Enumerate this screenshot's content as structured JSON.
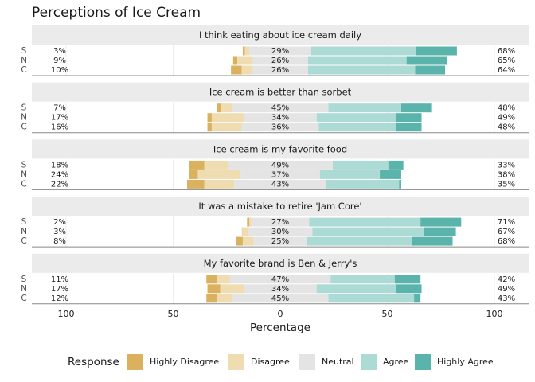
{
  "title": "Perceptions of Ice Cream",
  "x_axis": {
    "label": "Percentage",
    "xlim": [
      -116,
      116
    ],
    "xticks": [
      {
        "value": -100,
        "label": "100"
      },
      {
        "value": -50,
        "label": "50"
      },
      0,
      50,
      100
    ],
    "grid": true
  },
  "legend": {
    "title": "Response",
    "position": "bottom"
  },
  "chart_data": [
    {
      "type": "bar",
      "orientation": "horizontal",
      "stacking": "diverging",
      "title": "I think eating about ice cream daily",
      "categories": [
        "S",
        "N",
        "C"
      ],
      "series": [
        {
          "name": "Highly Disagree",
          "color": "#d9b15f",
          "values": [
            1,
            2,
            5
          ]
        },
        {
          "name": "Disagree",
          "color": "#efdcb0",
          "values": [
            2,
            7,
            5
          ]
        },
        {
          "name": "Neutral",
          "color": "#e4e4e4",
          "values": [
            29,
            26,
            26
          ],
          "value_labels": [
            "29%",
            "26%",
            "26%"
          ]
        },
        {
          "name": "Agree",
          "color": "#acdad4",
          "values": [
            49,
            46,
            50
          ]
        },
        {
          "name": "Highly Agree",
          "color": "#5ab4ab",
          "values": [
            19,
            19,
            14
          ]
        }
      ],
      "low_totals": {
        "values": [
          3,
          9,
          10
        ],
        "value_labels": [
          "3%",
          "9%",
          "10%"
        ]
      },
      "high_totals": {
        "values": [
          68,
          65,
          64
        ],
        "value_labels": [
          "68%",
          "65%",
          "64%"
        ]
      }
    },
    {
      "type": "bar",
      "orientation": "horizontal",
      "stacking": "diverging",
      "title": "Ice cream is better than sorbet",
      "categories": [
        "S",
        "N",
        "C"
      ],
      "series": [
        {
          "name": "Highly Disagree",
          "color": "#d9b15f",
          "values": [
            2,
            2,
            2
          ]
        },
        {
          "name": "Disagree",
          "color": "#efdcb0",
          "values": [
            5,
            15,
            14
          ]
        },
        {
          "name": "Neutral",
          "color": "#e4e4e4",
          "values": [
            45,
            34,
            36
          ],
          "value_labels": [
            "45%",
            "34%",
            "36%"
          ]
        },
        {
          "name": "Agree",
          "color": "#acdad4",
          "values": [
            34,
            37,
            36
          ]
        },
        {
          "name": "Highly Agree",
          "color": "#5ab4ab",
          "values": [
            14,
            12,
            12
          ]
        }
      ],
      "low_totals": {
        "values": [
          7,
          17,
          16
        ],
        "value_labels": [
          "7%",
          "17%",
          "16%"
        ]
      },
      "high_totals": {
        "values": [
          48,
          49,
          48
        ],
        "value_labels": [
          "48%",
          "49%",
          "48%"
        ]
      }
    },
    {
      "type": "bar",
      "orientation": "horizontal",
      "stacking": "diverging",
      "title": "Ice cream is my favorite food",
      "categories": [
        "S",
        "N",
        "C"
      ],
      "series": [
        {
          "name": "Highly Disagree",
          "color": "#d9b15f",
          "values": [
            7,
            4,
            8
          ]
        },
        {
          "name": "Disagree",
          "color": "#efdcb0",
          "values": [
            11,
            20,
            14
          ]
        },
        {
          "name": "Neutral",
          "color": "#e4e4e4",
          "values": [
            49,
            37,
            43
          ],
          "value_labels": [
            "49%",
            "37%",
            "43%"
          ]
        },
        {
          "name": "Agree",
          "color": "#acdad4",
          "values": [
            26,
            28,
            34
          ]
        },
        {
          "name": "Highly Agree",
          "color": "#5ab4ab",
          "values": [
            7,
            10,
            1
          ]
        }
      ],
      "low_totals": {
        "values": [
          18,
          24,
          22
        ],
        "value_labels": [
          "18%",
          "24%",
          "22%"
        ]
      },
      "high_totals": {
        "values": [
          33,
          38,
          35
        ],
        "value_labels": [
          "33%",
          "38%",
          "35%"
        ]
      }
    },
    {
      "type": "bar",
      "orientation": "horizontal",
      "stacking": "diverging",
      "title": "It was a mistake to retire 'Jam Core'",
      "categories": [
        "S",
        "N",
        "C"
      ],
      "series": [
        {
          "name": "Highly Disagree",
          "color": "#d9b15f",
          "values": [
            1,
            0,
            3
          ]
        },
        {
          "name": "Disagree",
          "color": "#efdcb0",
          "values": [
            1,
            3,
            5
          ]
        },
        {
          "name": "Neutral",
          "color": "#e4e4e4",
          "values": [
            27,
            30,
            25
          ],
          "value_labels": [
            "27%",
            "30%",
            "25%"
          ]
        },
        {
          "name": "Agree",
          "color": "#acdad4",
          "values": [
            52,
            52,
            49
          ]
        },
        {
          "name": "Highly Agree",
          "color": "#5ab4ab",
          "values": [
            19,
            15,
            19
          ]
        }
      ],
      "low_totals": {
        "values": [
          2,
          3,
          8
        ],
        "value_labels": [
          "2%",
          "3%",
          "8%"
        ]
      },
      "high_totals": {
        "values": [
          71,
          67,
          68
        ],
        "value_labels": [
          "71%",
          "67%",
          "68%"
        ]
      }
    },
    {
      "type": "bar",
      "orientation": "horizontal",
      "stacking": "diverging",
      "title": "My favorite brand is Ben & Jerry's",
      "categories": [
        "S",
        "N",
        "C"
      ],
      "series": [
        {
          "name": "Highly Disagree",
          "color": "#d9b15f",
          "values": [
            5,
            6,
            5
          ]
        },
        {
          "name": "Disagree",
          "color": "#efdcb0",
          "values": [
            6,
            11,
            7
          ]
        },
        {
          "name": "Neutral",
          "color": "#e4e4e4",
          "values": [
            47,
            34,
            45
          ],
          "value_labels": [
            "47%",
            "34%",
            "45%"
          ]
        },
        {
          "name": "Agree",
          "color": "#acdad4",
          "values": [
            30,
            37,
            40
          ]
        },
        {
          "name": "Highly Agree",
          "color": "#5ab4ab",
          "values": [
            12,
            12,
            3
          ]
        }
      ],
      "low_totals": {
        "values": [
          11,
          17,
          12
        ],
        "value_labels": [
          "11%",
          "17%",
          "12%"
        ]
      },
      "high_totals": {
        "values": [
          42,
          49,
          43
        ],
        "value_labels": [
          "42%",
          "49%",
          "43%"
        ]
      }
    }
  ]
}
